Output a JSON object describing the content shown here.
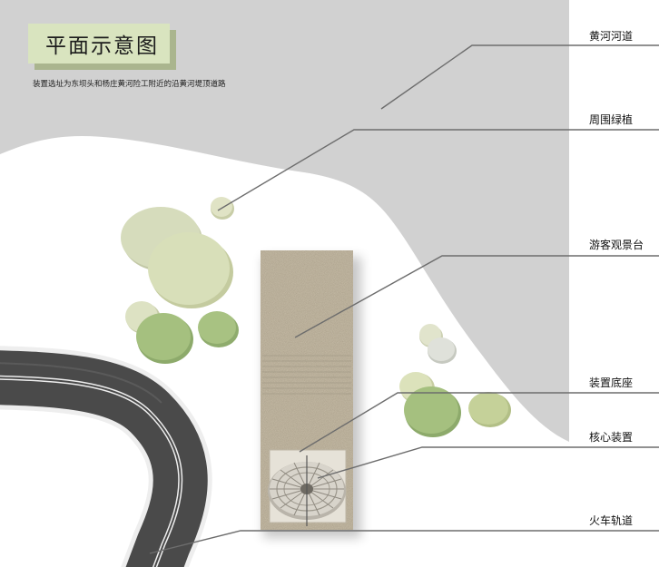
{
  "title": "平面示意图",
  "subtitle": "装置选址为东坝头和杨庄黄河险工附近的沿黄河堤顶道路",
  "labels": {
    "river": "黄河河道",
    "greenery": "周围绿植",
    "platform": "游客观景台",
    "base": "装置底座",
    "core": "核心装置",
    "railway": "火车轨道"
  },
  "colors": {
    "river_gray": "#d1d1d1",
    "title_box": "#d9e4bf",
    "title_shadow": "#aab58e",
    "tree_light": "#d6dcbc",
    "tree_mid": "#b7cb8f",
    "tree_dark": "#9fbb7b",
    "platform_stone": "#c8bea9",
    "track_dark": "#4a4a4a"
  }
}
